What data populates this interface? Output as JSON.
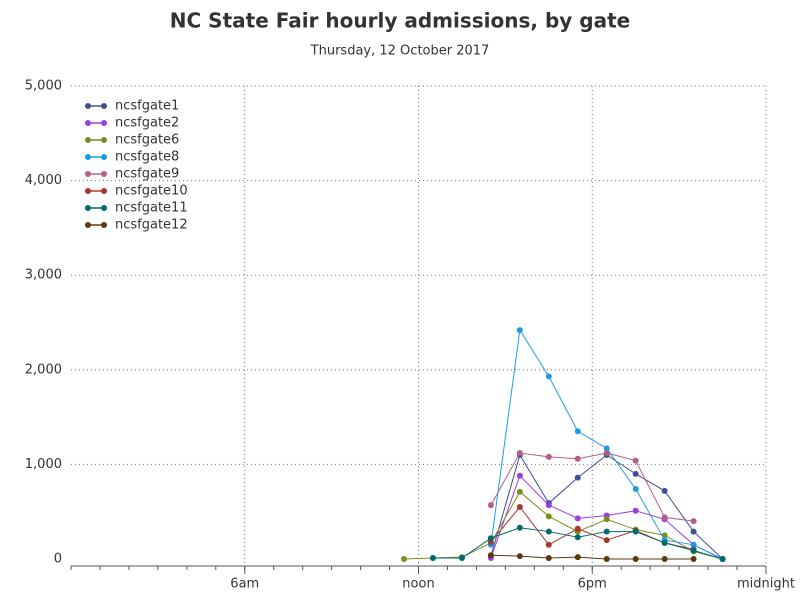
{
  "chart_data": {
    "type": "line",
    "title": "NC State Fair hourly admissions, by gate",
    "subtitle": "Thursday, 12 October 2017",
    "x": [
      11.5,
      12.5,
      13.5,
      14.5,
      15.5,
      16.5,
      17.5,
      18.5,
      19.5,
      20.5,
      21.5,
      22.5
    ],
    "xlim": [
      0,
      24
    ],
    "xticks": [
      {
        "value": 6,
        "label": "6am"
      },
      {
        "value": 12,
        "label": "noon"
      },
      {
        "value": 18,
        "label": "6pm"
      },
      {
        "value": 24,
        "label": "midnight"
      }
    ],
    "ylim": [
      0,
      5000
    ],
    "yticks": [
      {
        "value": 0,
        "label": "0"
      },
      {
        "value": 1000,
        "label": "1,000"
      },
      {
        "value": 2000,
        "label": "2,000"
      },
      {
        "value": 3000,
        "label": "3,000"
      },
      {
        "value": 4000,
        "label": "4,000"
      },
      {
        "value": 5000,
        "label": "5,000"
      }
    ],
    "grid": true,
    "legend": "top-left",
    "series": [
      {
        "name": "ncsfgate1",
        "color": "#3f4f8f",
        "values": [
          null,
          null,
          null,
          30,
          1100,
          590,
          860,
          1100,
          900,
          720,
          290,
          0
        ]
      },
      {
        "name": "ncsfgate2",
        "color": "#9b3ee0",
        "values": [
          null,
          null,
          null,
          10,
          880,
          570,
          430,
          460,
          510,
          420,
          150,
          0
        ]
      },
      {
        "name": "ncsfgate6",
        "color": "#7b8f1f",
        "values": [
          0,
          10,
          20,
          170,
          710,
          450,
          290,
          420,
          310,
          250,
          80,
          0
        ]
      },
      {
        "name": "ncsfgate8",
        "color": "#1e9be8",
        "values": [
          null,
          null,
          null,
          150,
          2420,
          1930,
          1350,
          1170,
          740,
          200,
          150,
          0
        ]
      },
      {
        "name": "ncsfgate9",
        "color": "#b55f86",
        "values": [
          null,
          null,
          null,
          570,
          1120,
          1080,
          1060,
          1120,
          1040,
          440,
          400,
          null
        ]
      },
      {
        "name": "ncsfgate10",
        "color": "#a5382f",
        "values": [
          null,
          null,
          null,
          180,
          550,
          150,
          320,
          200,
          300,
          170,
          100,
          null
        ]
      },
      {
        "name": "ncsfgate11",
        "color": "#006b6b",
        "values": [
          null,
          10,
          10,
          220,
          330,
          290,
          230,
          290,
          290,
          170,
          90,
          0
        ]
      },
      {
        "name": "ncsfgate12",
        "color": "#5a3a10",
        "values": [
          null,
          null,
          null,
          40,
          30,
          10,
          20,
          0,
          0,
          0,
          0,
          null
        ]
      }
    ]
  }
}
